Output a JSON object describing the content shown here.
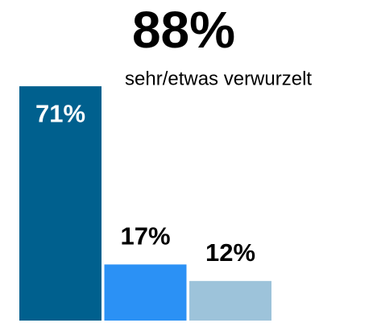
{
  "chart_data": {
    "type": "bar",
    "title": "88%",
    "subtitle": "sehr/etwas verwurzelt",
    "categories": [
      null,
      null,
      null
    ],
    "values": [
      71,
      17,
      12
    ],
    "value_labels": [
      "71%",
      "17%",
      "12%"
    ],
    "colors": [
      "#00608e",
      "#2b91f5",
      "#9dc3da"
    ],
    "ylim": [
      0,
      72
    ]
  }
}
